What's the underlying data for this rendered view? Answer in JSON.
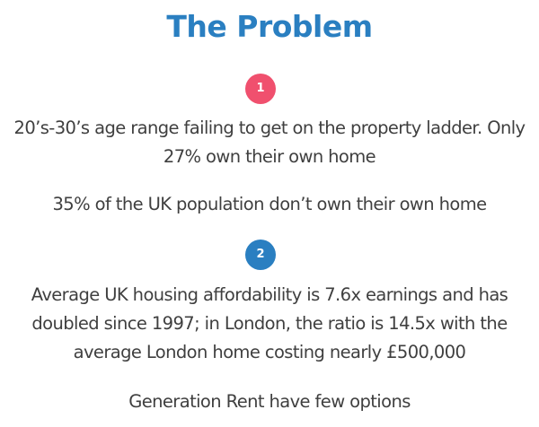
{
  "colors": {
    "title": "#2a7fc1",
    "badge_1": "#f0506e",
    "badge_2": "#2a7fc1",
    "text": "#3f3f3f"
  },
  "title": "The Problem",
  "section_1": {
    "number": "1",
    "lines": [
      "20’s-30’s age range failing to get on the property ladder. Only",
      "27% own their own home"
    ],
    "stat": "35% of the UK population don’t own their own home"
  },
  "section_2": {
    "number": "2",
    "lines": [
      "Average UK housing affordability is 7.6x earnings and has",
      "doubled since 1997; in London, the ratio is 14.5x with the",
      "average London home costing nearly £500,000"
    ],
    "closing": "Generation Rent have few options"
  }
}
